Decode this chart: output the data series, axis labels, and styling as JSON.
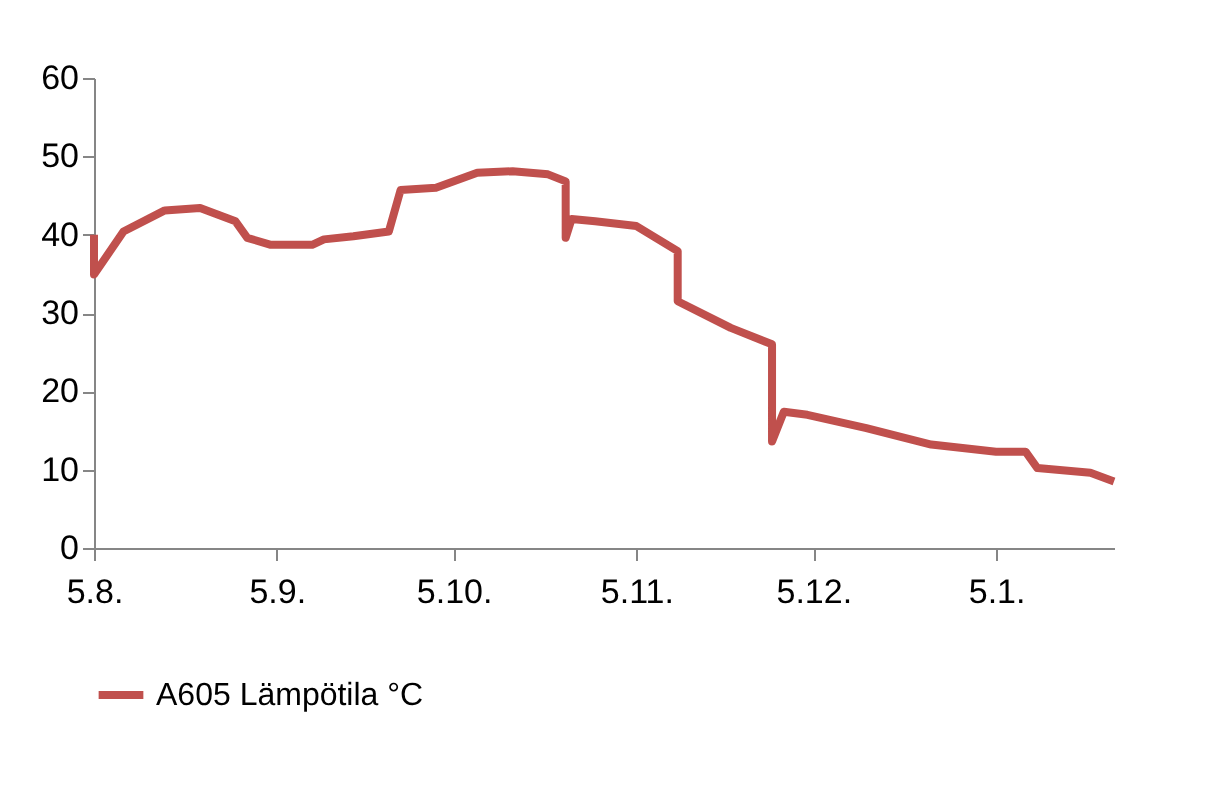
{
  "chart_data": {
    "type": "line",
    "x": [
      "2012-08-05",
      "2012-08-05",
      "2012-08-10",
      "2012-08-17",
      "2012-08-23",
      "2012-08-29",
      "2012-08-31",
      "2012-09-04",
      "2012-09-11",
      "2012-09-13",
      "2012-09-18",
      "2012-09-24",
      "2012-09-26",
      "2012-10-02",
      "2012-10-09",
      "2012-10-15",
      "2012-10-21",
      "2012-10-24",
      "2012-10-24",
      "2012-10-25",
      "2012-10-29",
      "2012-11-05",
      "2012-11-12",
      "2012-11-12",
      "2012-11-21",
      "2012-11-28",
      "2012-11-28",
      "2012-11-30",
      "2012-12-04",
      "2012-12-14",
      "2012-12-25",
      "2013-01-05",
      "2013-01-10",
      "2013-01-12",
      "2013-01-21",
      "2013-01-25"
    ],
    "series": [
      {
        "name": "A605 Lämpötila °C",
        "color": "#c0504d",
        "values": [
          40,
          34.9,
          40.4,
          43.1,
          43.4,
          41.7,
          39.6,
          38.7,
          38.7,
          39.4,
          39.8,
          40.4,
          45.7,
          46,
          47.9,
          48.1,
          47.7,
          46.8,
          39.6,
          42,
          41.7,
          41.1,
          37.9,
          31.5,
          28.1,
          26,
          13.6,
          17.4,
          17,
          15.3,
          13.2,
          12.3,
          12.3,
          10.2,
          9.6,
          8.5
        ]
      }
    ],
    "xlim": [
      "2012-08-05",
      "2013-01-25"
    ],
    "xticks": [
      {
        "value": "2012-08-05",
        "label": "5.8."
      },
      {
        "value": "2012-09-05",
        "label": "5.9."
      },
      {
        "value": "2012-10-05",
        "label": "5.10."
      },
      {
        "value": "2012-11-05",
        "label": "5.11."
      },
      {
        "value": "2012-12-05",
        "label": "5.12."
      },
      {
        "value": "2013-01-05",
        "label": "5.1."
      }
    ],
    "ylim": [
      0,
      60
    ],
    "yticks": [
      0,
      10,
      20,
      30,
      40,
      50,
      60
    ],
    "grid": false,
    "legend": "bottom",
    "marker": "none",
    "line_style": "solid"
  }
}
